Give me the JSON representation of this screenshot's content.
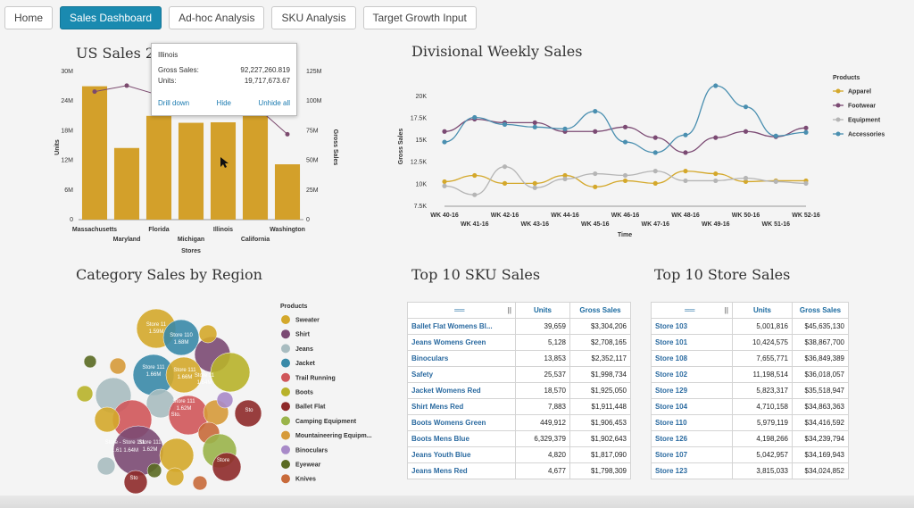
{
  "nav": {
    "tabs": [
      {
        "label": "Home",
        "active": false
      },
      {
        "label": "Sales Dashboard",
        "active": true
      },
      {
        "label": "Ad-hoc Analysis",
        "active": false
      },
      {
        "label": "SKU Analysis",
        "active": false
      },
      {
        "label": "Target Growth Input",
        "active": false
      }
    ]
  },
  "colors": {
    "accent": "#1a8ab0",
    "bar": "#d3a02a",
    "line": "#7b4a6e",
    "apparel": "#d4a82b",
    "footwear": "#7b4a73",
    "equipment": "#b5b5b5",
    "accessories": "#4a8fb0"
  },
  "us_sales": {
    "title": "US Sales 20",
    "tooltip": {
      "title": "Illinois",
      "gross_label": "Gross Sales:",
      "gross_value": "92,227,260.819",
      "units_label": "Units:",
      "units_value": "19,717,673.67",
      "drill": "Drill down",
      "hide": "Hide",
      "unhide": "Unhide all"
    }
  },
  "divisional": {
    "title": "Divisional Weekly Sales"
  },
  "category": {
    "title": "Category Sales by Region"
  },
  "sku": {
    "title": "Top 10 SKU Sales",
    "col_units": "Units",
    "col_gross": "Gross Sales",
    "rows": [
      {
        "name": "Ballet Flat Womens Bl...",
        "units": "39,659",
        "gross": "$3,304,206"
      },
      {
        "name": "Jeans Womens Green",
        "units": "5,128",
        "gross": "$2,708,165"
      },
      {
        "name": "Binoculars",
        "units": "13,853",
        "gross": "$2,352,117"
      },
      {
        "name": "Safety",
        "units": "25,537",
        "gross": "$1,998,734"
      },
      {
        "name": "Jacket Womens Red",
        "units": "18,570",
        "gross": "$1,925,050"
      },
      {
        "name": "Shirt Mens Red",
        "units": "7,883",
        "gross": "$1,911,448"
      },
      {
        "name": "Boots Womens Green",
        "units": "449,912",
        "gross": "$1,906,453"
      },
      {
        "name": "Boots Mens Blue",
        "units": "6,329,379",
        "gross": "$1,902,643"
      },
      {
        "name": "Jeans Youth Blue",
        "units": "4,820",
        "gross": "$1,817,090"
      },
      {
        "name": "Jeans Mens Red",
        "units": "4,677",
        "gross": "$1,798,309"
      }
    ]
  },
  "store": {
    "title": "Top 10 Store Sales",
    "col_units": "Units",
    "col_gross": "Gross Sales",
    "rows": [
      {
        "name": "Store 103",
        "units": "5,001,816",
        "gross": "$45,635,130"
      },
      {
        "name": "Store 101",
        "units": "10,424,575",
        "gross": "$38,867,700"
      },
      {
        "name": "Store 108",
        "units": "7,655,771",
        "gross": "$36,849,389"
      },
      {
        "name": "Store 102",
        "units": "11,198,514",
        "gross": "$36,018,057"
      },
      {
        "name": "Store 129",
        "units": "5,823,317",
        "gross": "$35,518,947"
      },
      {
        "name": "Store 104",
        "units": "4,710,158",
        "gross": "$34,863,363"
      },
      {
        "name": "Store 110",
        "units": "5,979,119",
        "gross": "$34,416,592"
      },
      {
        "name": "Store 126",
        "units": "4,198,266",
        "gross": "$34,239,794"
      },
      {
        "name": "Store 107",
        "units": "5,042,957",
        "gross": "$34,169,943"
      },
      {
        "name": "Store 123",
        "units": "3,815,033",
        "gross": "$34,024,852"
      }
    ]
  },
  "chart_data": [
    {
      "type": "bar",
      "title": "US Sales 20",
      "xlabel": "Stores",
      "ylabel": "Units",
      "y2label": "Gross Sales",
      "categories": [
        "Massachusetts",
        "Maryland",
        "Florida",
        "Michigan",
        "Illinois",
        "California",
        "Washington"
      ],
      "ylim": [
        0,
        30000000
      ],
      "yticks": [
        "0",
        "6M",
        "12M",
        "18M",
        "24M",
        "30M"
      ],
      "y2lim": [
        0,
        125000000
      ],
      "y2ticks": [
        "0",
        "25M",
        "50M",
        "75M",
        "100M",
        "125M"
      ],
      "series": [
        {
          "name": "Units",
          "values": [
            27000000,
            14500000,
            21000000,
            19600000,
            19700000,
            21500000,
            11200000
          ]
        },
        {
          "name": "Gross Sales",
          "values": [
            108000000,
            113000000,
            105000000,
            93000000,
            92000000,
            96000000,
            72000000
          ]
        }
      ]
    },
    {
      "type": "line",
      "title": "Divisional Weekly Sales",
      "xlabel": "Time",
      "ylabel": "Gross Sales",
      "categories": [
        "WK 40-16",
        "WK 41-16",
        "WK 42-16",
        "WK 43-16",
        "WK 44-16",
        "WK 45-16",
        "WK 46-16",
        "WK 47-16",
        "WK 48-16",
        "WK 49-16",
        "WK 50-16",
        "WK 51-16",
        "WK 52-16"
      ],
      "ylim": [
        7500,
        21000
      ],
      "yticks": [
        "7.5K",
        "10K",
        "12.5K",
        "15K",
        "17.5K",
        "20K"
      ],
      "legend_title": "Products",
      "legend": "right",
      "series": [
        {
          "name": "Apparel",
          "values": [
            10300,
            11000,
            10100,
            10100,
            11000,
            9700,
            10400,
            10100,
            11500,
            11200,
            10300,
            10400,
            10400
          ]
        },
        {
          "name": "Footwear",
          "values": [
            16000,
            17400,
            17000,
            17000,
            16000,
            16000,
            16500,
            15300,
            13600,
            15300,
            16000,
            15400,
            16400
          ]
        },
        {
          "name": "Equipment",
          "values": [
            9800,
            8800,
            12000,
            9600,
            10600,
            11200,
            11000,
            11500,
            10400,
            10400,
            10700,
            10300,
            10100
          ]
        },
        {
          "name": "Accessories",
          "values": [
            14800,
            17600,
            16800,
            16500,
            16300,
            18300,
            14800,
            13600,
            15600,
            21200,
            18800,
            15500,
            15900
          ]
        }
      ]
    },
    {
      "type": "scatter",
      "title": "Category Sales by Region",
      "legend_title": "Products",
      "legend": "right",
      "legend_entries": [
        {
          "name": "Sweater",
          "color": "#d4a82b"
        },
        {
          "name": "Shirt",
          "color": "#7b4a73"
        },
        {
          "name": "Jeans",
          "color": "#a8bcc0"
        },
        {
          "name": "Jacket",
          "color": "#3a8aa8"
        },
        {
          "name": "Trail Running",
          "color": "#d0575a"
        },
        {
          "name": "Boots",
          "color": "#b8b22a"
        },
        {
          "name": "Ballet Flat",
          "color": "#8e2a2a"
        },
        {
          "name": "Camping Equipment",
          "color": "#9ab44a"
        },
        {
          "name": "Mountaineering Equipm...",
          "color": "#d69a3a"
        },
        {
          "name": "Binoculars",
          "color": "#a88ac8"
        },
        {
          "name": "Eyewear",
          "color": "#5a6a22"
        },
        {
          "name": "Knives",
          "color": "#c86a3a"
        }
      ],
      "bubble_labels": [
        "Store 11",
        "1.59M",
        "Store 110",
        "1.68M",
        "Store 111",
        "1.66M",
        "Store 111",
        "1.66M",
        "Store 111",
        "1.62M",
        "Store 11",
        "1.64M",
        "Store 111",
        "1.62M",
        "Store - Store 111",
        "1.61 1.64M",
        "Store",
        "Sto",
        "Sto",
        "Sto."
      ]
    }
  ]
}
